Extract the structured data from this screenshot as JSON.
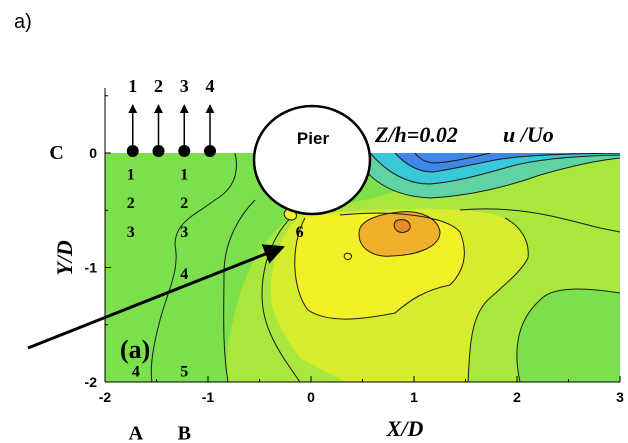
{
  "panel_tag": "a)",
  "chart_data": {
    "type": "heatmap",
    "subtype": "filled-contour",
    "xlabel": "X/D",
    "ylabel": "Y/D",
    "xlim": [
      -2,
      3
    ],
    "ylim": [
      -2,
      0
    ],
    "x_ticks": [
      -2,
      -1,
      0,
      1,
      2,
      3
    ],
    "y_ticks": [
      -2,
      -1,
      0
    ],
    "x_tick_labels": [
      "-2",
      "-1",
      "0",
      "1",
      "2",
      "3"
    ],
    "y_tick_labels": [
      "-2",
      "-1",
      "0"
    ],
    "grid": false,
    "plane_label": "Z/h=0.02",
    "variable_label": "u /Uo",
    "pier_label": "Pier",
    "panel_label": "(a)",
    "pier": {
      "center": [
        0.2,
        0.1
      ],
      "radius": 0.5
    },
    "colors": {
      "background_green": "#7ce04c",
      "yellow": "#f4f028",
      "orange": "#f0b02a",
      "cyan": "#38c8d8",
      "blue": "#3f88e8",
      "contour_line": "#1a1a1a"
    },
    "probe_arrows": [
      {
        "label": "1",
        "x": -1.75
      },
      {
        "label": "2",
        "x": -1.5
      },
      {
        "label": "3",
        "x": -1.25
      },
      {
        "label": "4",
        "x": -1.0
      }
    ],
    "markers": [
      {
        "text": "C",
        "x": -2.47,
        "y": 0.0
      },
      {
        "text": "1",
        "x": -1.75,
        "y": -0.18
      },
      {
        "text": "1",
        "x": -1.23,
        "y": -0.18
      },
      {
        "text": "2",
        "x": -1.75,
        "y": -0.43
      },
      {
        "text": "2",
        "x": -1.23,
        "y": -0.43
      },
      {
        "text": "3",
        "x": -1.75,
        "y": -0.68
      },
      {
        "text": "3",
        "x": -1.23,
        "y": -0.68
      },
      {
        "text": "4",
        "x": -1.23,
        "y": -1.05
      },
      {
        "text": "6",
        "x": -0.11,
        "y": -0.68
      },
      {
        "text": "4",
        "x": -1.7,
        "y": -1.9
      },
      {
        "text": "5",
        "x": -1.23,
        "y": -1.9
      },
      {
        "text": "A",
        "x": -1.7,
        "y": -2.45
      },
      {
        "text": "B",
        "x": -1.23,
        "y": -2.45
      }
    ]
  }
}
